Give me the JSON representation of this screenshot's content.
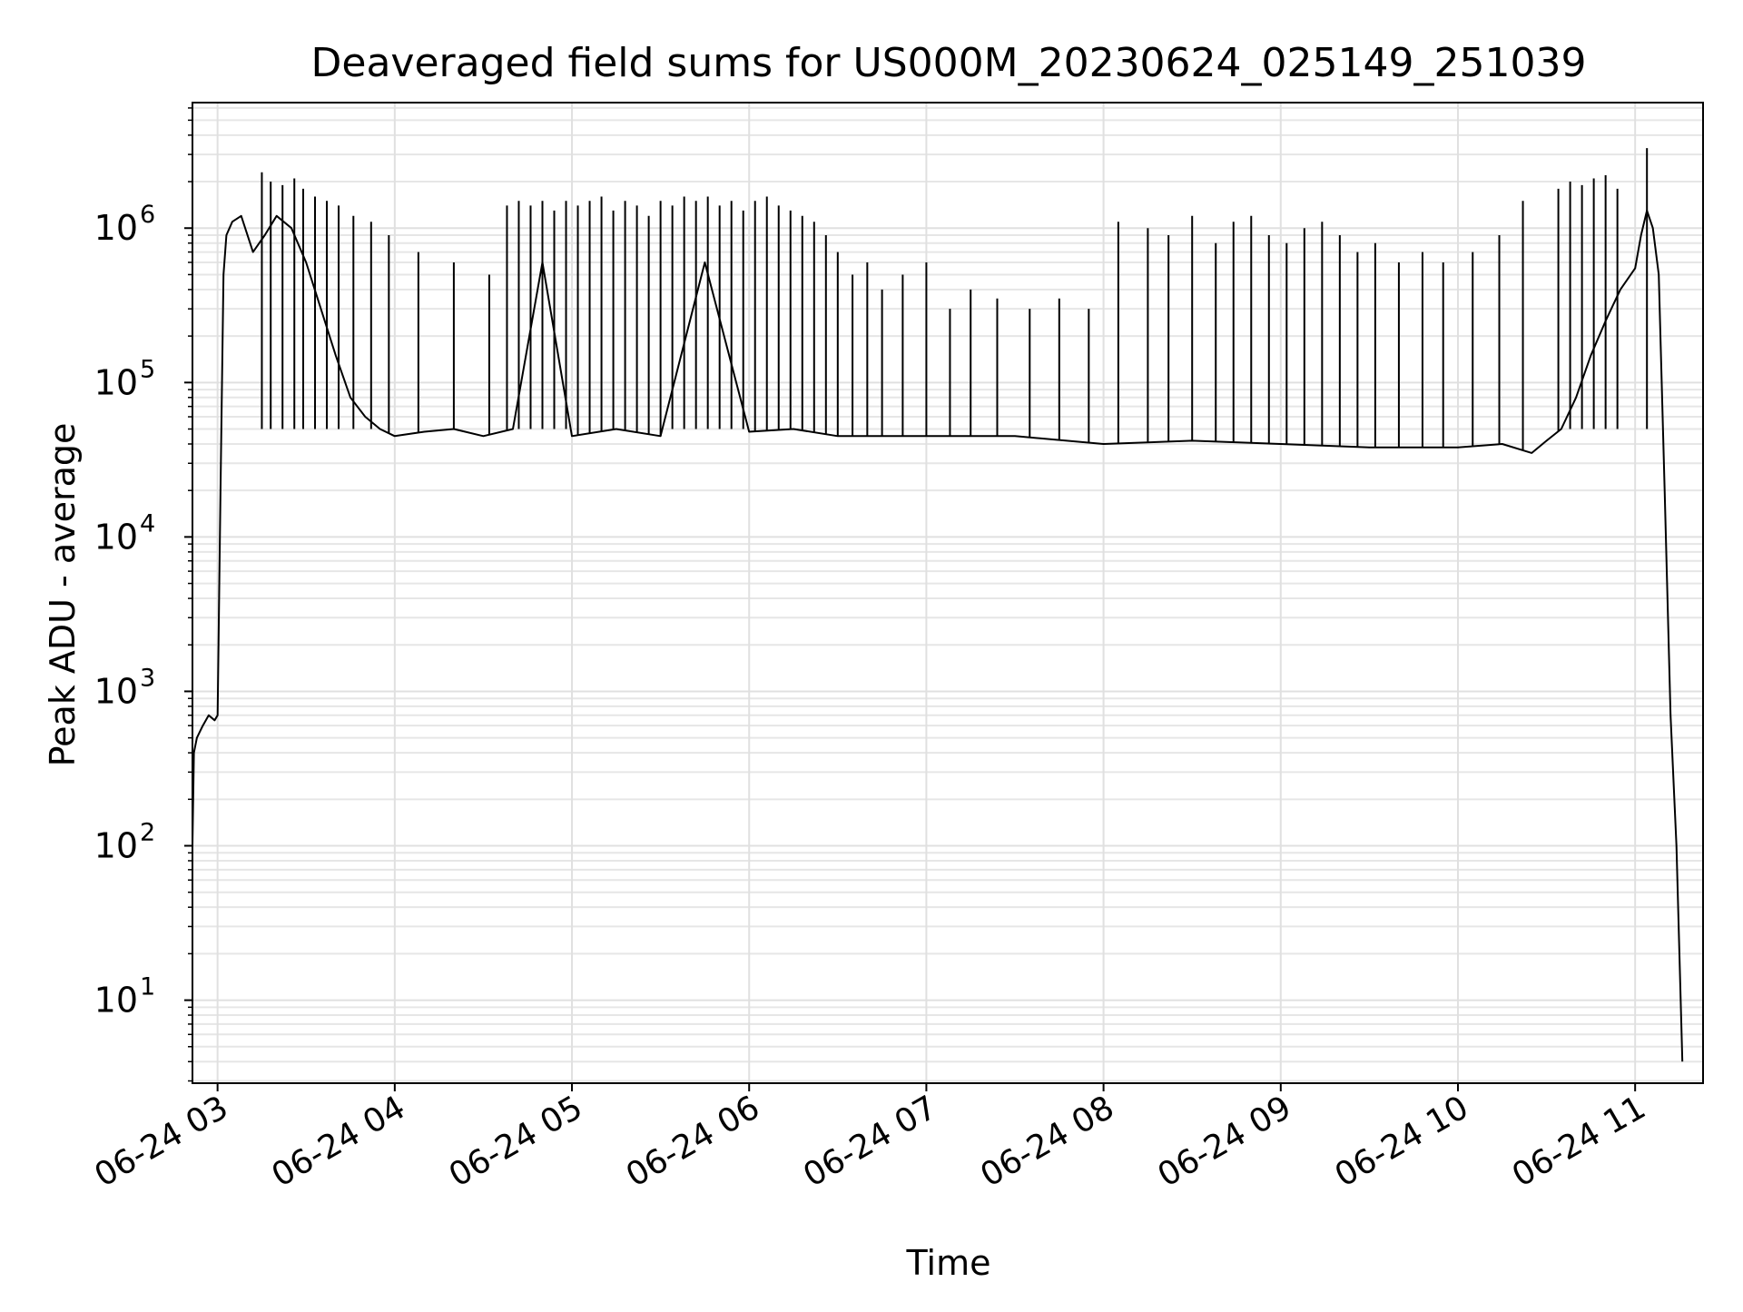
{
  "chart_data": {
    "type": "line",
    "title": "Deaveraged field sums for US000M_20230624_025149_251039",
    "xlabel": "Time",
    "ylabel": "Peak ADU - average",
    "yscale": "log",
    "ylim": [
      2.9,
      6500000
    ],
    "xlim": [
      "2023-06-24 02:51:30",
      "2023-06-24 11:23:00"
    ],
    "grid": true,
    "x_ticks": [
      {
        "t": "2023-06-24 03:00",
        "label": "06-24 03"
      },
      {
        "t": "2023-06-24 04:00",
        "label": "06-24 04"
      },
      {
        "t": "2023-06-24 05:00",
        "label": "06-24 05"
      },
      {
        "t": "2023-06-24 06:00",
        "label": "06-24 06"
      },
      {
        "t": "2023-06-24 07:00",
        "label": "06-24 07"
      },
      {
        "t": "2023-06-24 08:00",
        "label": "06-24 08"
      },
      {
        "t": "2023-06-24 09:00",
        "label": "06-24 09"
      },
      {
        "t": "2023-06-24 10:00",
        "label": "06-24 10"
      },
      {
        "t": "2023-06-24 11:00",
        "label": "06-24 11"
      }
    ],
    "y_ticks": [
      {
        "value": 10,
        "label": "10",
        "exp": "1"
      },
      {
        "value": 100,
        "label": "10",
        "exp": "2"
      },
      {
        "value": 1000,
        "label": "10",
        "exp": "3"
      },
      {
        "value": 10000,
        "label": "10",
        "exp": "4"
      },
      {
        "value": 100000,
        "label": "10",
        "exp": "5"
      },
      {
        "value": 1000000,
        "label": "10",
        "exp": "6"
      }
    ],
    "series": [
      {
        "color": "#000000",
        "x": [
          "2023-06-24 02:51:30",
          "2023-06-24 02:52:00",
          "2023-06-24 02:53:00",
          "2023-06-24 02:55:00",
          "2023-06-24 02:57:00",
          "2023-06-24 02:59:00",
          "2023-06-24 03:00:00",
          "2023-06-24 03:01:00",
          "2023-06-24 03:02:00",
          "2023-06-24 03:03:00",
          "2023-06-24 03:05:00",
          "2023-06-24 03:08:00",
          "2023-06-24 03:12:00",
          "2023-06-24 03:16:00",
          "2023-06-24 03:20:00",
          "2023-06-24 03:25:00",
          "2023-06-24 03:30:00",
          "2023-06-24 03:35:00",
          "2023-06-24 03:40:00",
          "2023-06-24 03:45:00",
          "2023-06-24 03:50:00",
          "2023-06-24 03:55:00",
          "2023-06-24 04:00:00",
          "2023-06-24 04:10:00",
          "2023-06-24 04:20:00",
          "2023-06-24 04:30:00",
          "2023-06-24 04:40:00",
          "2023-06-24 04:50:00",
          "2023-06-24 05:00:00",
          "2023-06-24 05:15:00",
          "2023-06-24 05:30:00",
          "2023-06-24 05:45:00",
          "2023-06-24 06:00:00",
          "2023-06-24 06:15:00",
          "2023-06-24 06:30:00",
          "2023-06-24 06:45:00",
          "2023-06-24 07:00:00",
          "2023-06-24 07:30:00",
          "2023-06-24 08:00:00",
          "2023-06-24 08:30:00",
          "2023-06-24 09:00:00",
          "2023-06-24 09:30:00",
          "2023-06-24 10:00:00",
          "2023-06-24 10:15:00",
          "2023-06-24 10:25:00",
          "2023-06-24 10:30:00",
          "2023-06-24 10:35:00",
          "2023-06-24 10:40:00",
          "2023-06-24 10:45:00",
          "2023-06-24 10:50:00",
          "2023-06-24 10:55:00",
          "2023-06-24 11:00:00",
          "2023-06-24 11:02:00",
          "2023-06-24 11:04:00",
          "2023-06-24 11:06:00",
          "2023-06-24 11:08:00",
          "2023-06-24 11:10:00",
          "2023-06-24 11:12:00",
          "2023-06-24 11:14:00",
          "2023-06-24 11:16:00"
        ],
        "y": [
          100,
          400,
          500,
          600,
          700,
          650,
          700,
          20000,
          500000,
          900000,
          1100000,
          1200000,
          700000,
          900000,
          1200000,
          1000000,
          600000,
          300000,
          150000,
          80000,
          60000,
          50000,
          45000,
          48000,
          50000,
          45000,
          50000,
          600000,
          45000,
          50000,
          45000,
          600000,
          48000,
          50000,
          45000,
          45000,
          45000,
          45000,
          40000,
          42000,
          40000,
          38000,
          38000,
          40000,
          35000,
          42000,
          50000,
          80000,
          150000,
          250000,
          400000,
          550000,
          900000,
          1300000,
          1000000,
          500000,
          20000,
          700,
          100,
          4
        ]
      }
    ],
    "spikes": {
      "color": "#000000",
      "x": [
        "2023-06-24 03:15",
        "2023-06-24 03:18",
        "2023-06-24 03:22",
        "2023-06-24 03:26",
        "2023-06-24 03:29",
        "2023-06-24 03:33",
        "2023-06-24 03:37",
        "2023-06-24 03:41",
        "2023-06-24 03:46",
        "2023-06-24 03:52",
        "2023-06-24 03:58",
        "2023-06-24 04:08",
        "2023-06-24 04:20",
        "2023-06-24 04:32",
        "2023-06-24 04:38",
        "2023-06-24 04:42",
        "2023-06-24 04:46",
        "2023-06-24 04:50",
        "2023-06-24 04:54",
        "2023-06-24 04:58",
        "2023-06-24 05:02",
        "2023-06-24 05:06",
        "2023-06-24 05:10",
        "2023-06-24 05:14",
        "2023-06-24 05:18",
        "2023-06-24 05:22",
        "2023-06-24 05:26",
        "2023-06-24 05:30",
        "2023-06-24 05:34",
        "2023-06-24 05:38",
        "2023-06-24 05:42",
        "2023-06-24 05:46",
        "2023-06-24 05:50",
        "2023-06-24 05:54",
        "2023-06-24 05:58",
        "2023-06-24 06:02",
        "2023-06-24 06:06",
        "2023-06-24 06:10",
        "2023-06-24 06:14",
        "2023-06-24 06:18",
        "2023-06-24 06:22",
        "2023-06-24 06:26",
        "2023-06-24 06:30",
        "2023-06-24 06:35",
        "2023-06-24 06:40",
        "2023-06-24 06:45",
        "2023-06-24 06:52",
        "2023-06-24 07:00",
        "2023-06-24 07:08",
        "2023-06-24 07:15",
        "2023-06-24 07:24",
        "2023-06-24 07:35",
        "2023-06-24 07:45",
        "2023-06-24 07:55",
        "2023-06-24 08:05",
        "2023-06-24 08:15",
        "2023-06-24 08:22",
        "2023-06-24 08:30",
        "2023-06-24 08:38",
        "2023-06-24 08:44",
        "2023-06-24 08:50",
        "2023-06-24 08:56",
        "2023-06-24 09:02",
        "2023-06-24 09:08",
        "2023-06-24 09:14",
        "2023-06-24 09:20",
        "2023-06-24 09:26",
        "2023-06-24 09:32",
        "2023-06-24 09:40",
        "2023-06-24 09:48",
        "2023-06-24 09:55",
        "2023-06-24 10:05",
        "2023-06-24 10:14",
        "2023-06-24 10:22",
        "2023-06-24 10:34",
        "2023-06-24 10:38",
        "2023-06-24 10:42",
        "2023-06-24 10:46",
        "2023-06-24 10:50",
        "2023-06-24 10:54",
        "2023-06-24 11:04"
      ],
      "y": [
        2300000,
        2000000,
        1900000,
        2100000,
        1800000,
        1600000,
        1500000,
        1400000,
        1200000,
        1100000,
        900000,
        700000,
        600000,
        500000,
        1400000,
        1500000,
        1400000,
        1500000,
        1300000,
        1500000,
        1400000,
        1500000,
        1600000,
        1300000,
        1500000,
        1400000,
        1200000,
        1500000,
        1400000,
        1600000,
        1500000,
        1600000,
        1400000,
        1500000,
        1300000,
        1500000,
        1600000,
        1400000,
        1300000,
        1200000,
        1100000,
        900000,
        700000,
        500000,
        600000,
        400000,
        500000,
        600000,
        300000,
        400000,
        350000,
        300000,
        350000,
        300000,
        1100000,
        1000000,
        900000,
        1200000,
        800000,
        1100000,
        1200000,
        900000,
        800000,
        1000000,
        1100000,
        900000,
        700000,
        800000,
        600000,
        700000,
        600000,
        700000,
        900000,
        1500000,
        1800000,
        2000000,
        1900000,
        2100000,
        2200000,
        1800000,
        3300000
      ]
    }
  }
}
